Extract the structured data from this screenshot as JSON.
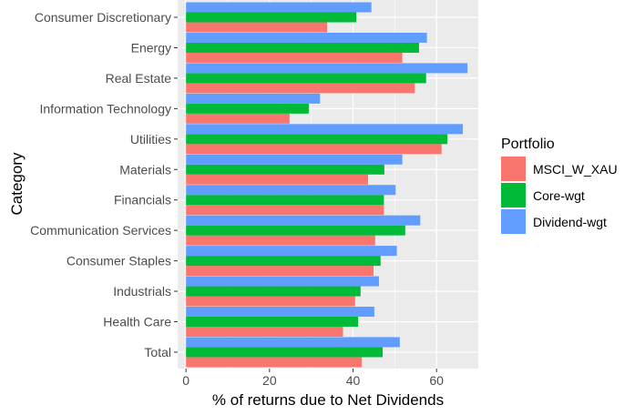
{
  "chart_data": {
    "type": "bar",
    "orientation": "horizontal",
    "xlabel": "% of returns due to Net Dividends",
    "ylabel": "Category",
    "xlim": [
      -2,
      70
    ],
    "x_ticks": [
      0,
      20,
      40,
      60
    ],
    "grid": true,
    "legend": {
      "title": "Portfolio",
      "position": "right"
    },
    "categories": [
      "Consumer Discretionary",
      "Energy",
      "Real Estate",
      "Information Technology",
      "Utilities",
      "Materials",
      "Financials",
      "Communication Services",
      "Consumer Staples",
      "Industrials",
      "Health Care",
      "Total"
    ],
    "series": [
      {
        "name": "MSCI_W_XAU",
        "color": "#F8766D",
        "values": [
          33.8,
          51.8,
          54.8,
          24.8,
          61.2,
          43.6,
          47.4,
          45.3,
          44.9,
          40.5,
          37.6,
          42.1
        ]
      },
      {
        "name": "Core-wgt",
        "color": "#00BA38",
        "values": [
          40.8,
          55.8,
          57.5,
          29.4,
          62.6,
          47.5,
          47.4,
          52.5,
          46.6,
          41.8,
          41.2,
          47.1
        ]
      },
      {
        "name": "Dividend-wgt",
        "color": "#619CFF",
        "values": [
          44.4,
          57.7,
          67.4,
          32.1,
          66.3,
          51.8,
          50.2,
          56.1,
          50.5,
          46.2,
          45.1,
          51.2
        ]
      }
    ]
  }
}
